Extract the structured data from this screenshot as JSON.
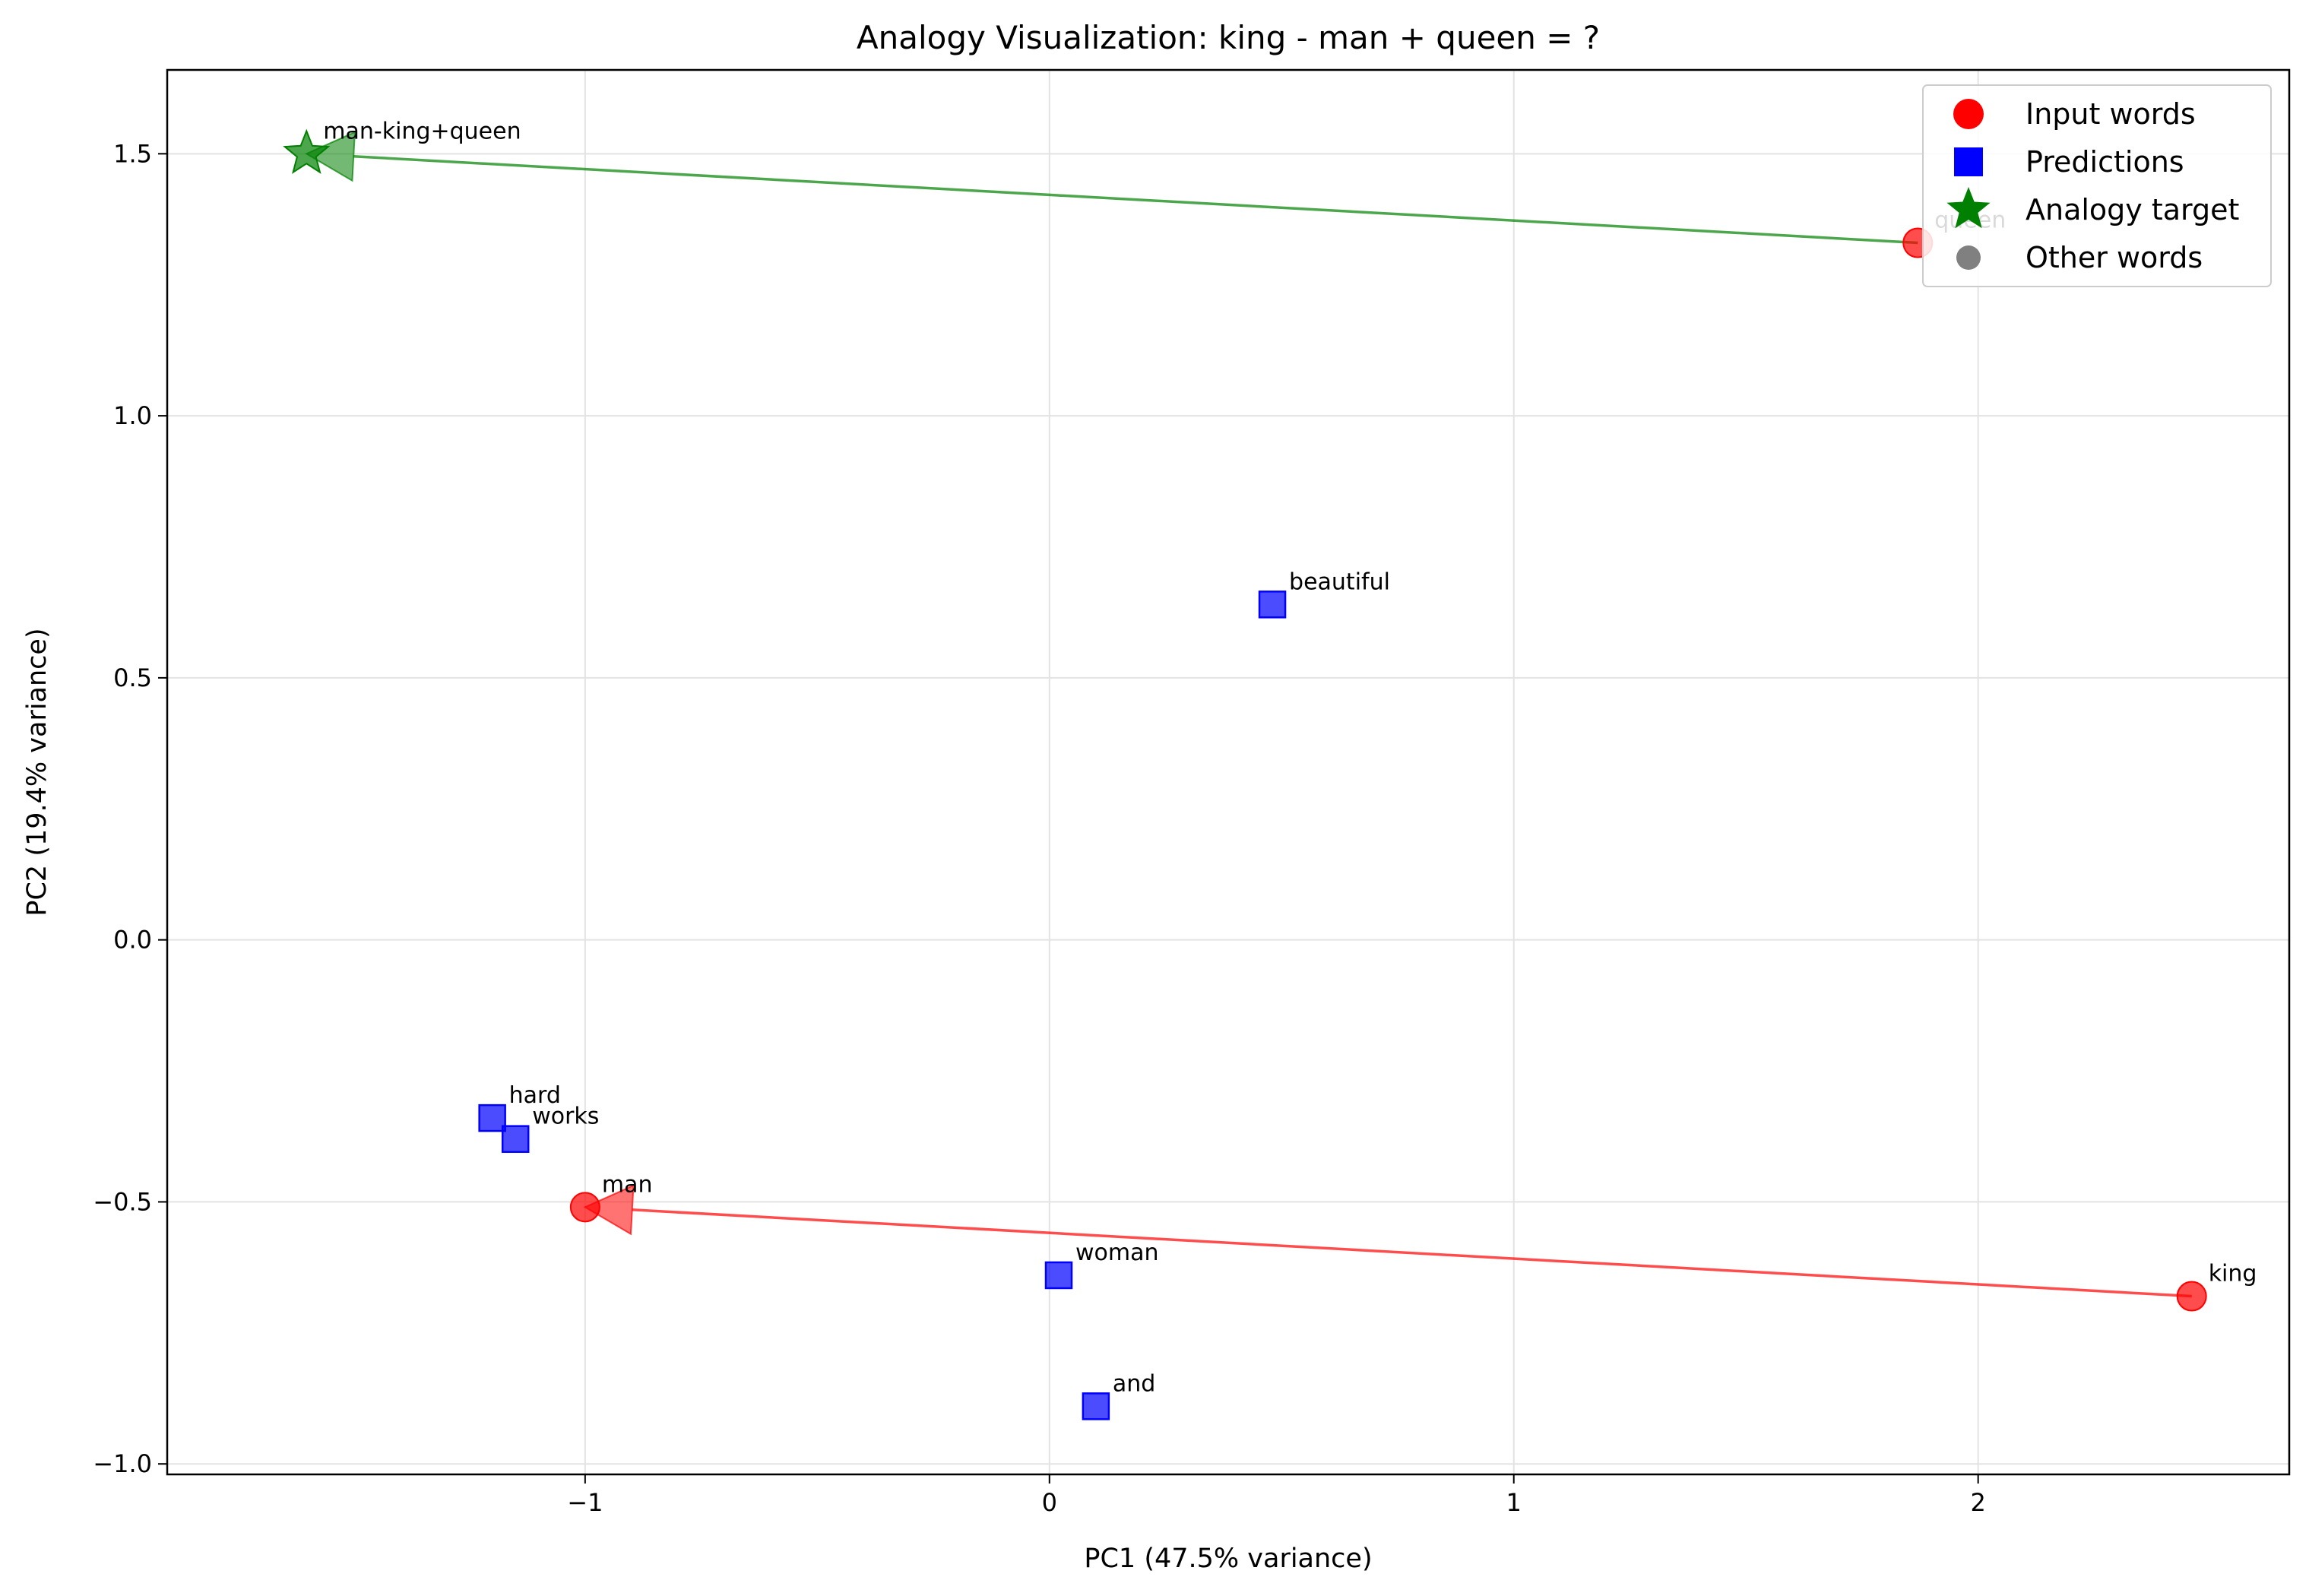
{
  "chart_data": {
    "type": "scatter",
    "title": "Analogy Visualization: king - man + queen = ?",
    "xlabel": "PC1 (47.5% variance)",
    "ylabel": "PC2 (19.4% variance)",
    "xlim": [
      -1.9,
      2.67
    ],
    "ylim": [
      -1.02,
      1.66
    ],
    "xticks": [
      -1,
      0,
      1,
      2
    ],
    "xtick_labels": [
      "−1",
      "0",
      "1",
      "2"
    ],
    "yticks": [
      -1.0,
      -0.5,
      0.0,
      0.5,
      1.0,
      1.5
    ],
    "ytick_labels": [
      "−1.0",
      "−0.5",
      "0.0",
      "0.5",
      "1.0",
      "1.5"
    ],
    "grid": true,
    "legend_position": "top-right",
    "colors": {
      "input": "#ff0000",
      "prediction": "#0000ff",
      "target": "#008000",
      "other": "#808080"
    },
    "series": [
      {
        "name": "Input words",
        "marker": "circle",
        "points": [
          {
            "label": "queen",
            "x": 1.87,
            "y": 1.33
          },
          {
            "label": "man",
            "x": -1.0,
            "y": -0.51
          },
          {
            "label": "king",
            "x": 2.46,
            "y": -0.68
          }
        ]
      },
      {
        "name": "Predictions",
        "marker": "square",
        "points": [
          {
            "label": "beautiful",
            "x": 0.48,
            "y": 0.64
          },
          {
            "label": "hard",
            "x": -1.2,
            "y": -0.34
          },
          {
            "label": "works",
            "x": -1.15,
            "y": -0.38
          },
          {
            "label": "woman",
            "x": 0.02,
            "y": -0.64
          },
          {
            "label": "and",
            "x": 0.1,
            "y": -0.89
          }
        ]
      },
      {
        "name": "Analogy target",
        "marker": "star",
        "points": [
          {
            "label": "man-king+queen",
            "x": -1.6,
            "y": 1.5
          }
        ]
      },
      {
        "name": "Other words",
        "marker": "circle",
        "points": []
      }
    ],
    "arrows": [
      {
        "from": [
          2.46,
          -0.68
        ],
        "to": [
          -1.0,
          -0.51
        ],
        "color": "#ff0000"
      },
      {
        "from": [
          1.87,
          1.33
        ],
        "to": [
          -1.6,
          1.5
        ],
        "color": "#008000"
      }
    ]
  }
}
